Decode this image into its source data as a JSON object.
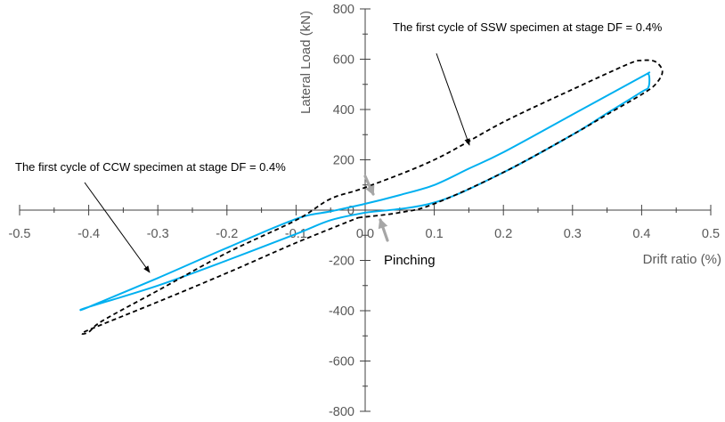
{
  "chart_data": {
    "type": "line",
    "title": "",
    "xlabel": "Drift ratio (%)",
    "ylabel": "Lateral Load (kN)",
    "xlim": [
      -0.5,
      0.5
    ],
    "ylim": [
      -800,
      800
    ],
    "x_ticks": [
      -0.5,
      -0.4,
      -0.3,
      -0.2,
      -0.1,
      0.0,
      0.1,
      0.2,
      0.3,
      0.4,
      0.5
    ],
    "x_tick_labels": [
      "-0.5",
      "-0.4",
      "-0.3",
      "-0.2",
      "-0.1",
      "0.0",
      "0.1",
      "0.2",
      "0.3",
      "0.4",
      "0.5"
    ],
    "y_ticks": [
      -800,
      -600,
      -400,
      -200,
      0,
      200,
      400,
      600,
      800
    ],
    "y_tick_labels": [
      "-800",
      "-600",
      "-400",
      "-200",
      "0",
      "200",
      "400",
      "600",
      "800"
    ],
    "grid": false,
    "series": [
      {
        "color": "#00b0f0",
        "style": "solid",
        "points": [
          [
            0.0,
            -10
          ],
          [
            0.1,
            30
          ],
          [
            0.2,
            150
          ],
          [
            0.3,
            300
          ],
          [
            0.35,
            385
          ],
          [
            0.4,
            470
          ],
          [
            0.41,
            490
          ],
          [
            0.41,
            540
          ],
          [
            0.4,
            530
          ],
          [
            0.3,
            380
          ],
          [
            0.2,
            230
          ],
          [
            0.15,
            165
          ],
          [
            0.1,
            100
          ],
          [
            0.05,
            60
          ],
          [
            0.0,
            25
          ],
          [
            -0.05,
            -5
          ],
          [
            -0.1,
            -35
          ],
          [
            -0.2,
            -150
          ],
          [
            -0.3,
            -270
          ],
          [
            -0.4,
            -385
          ],
          [
            -0.41,
            -395
          ],
          [
            -0.4,
            -385
          ],
          [
            -0.3,
            -300
          ],
          [
            -0.2,
            -200
          ],
          [
            -0.1,
            -95
          ],
          [
            -0.05,
            -40
          ],
          [
            0.0,
            -10
          ]
        ]
      },
      {
        "color": "#000000",
        "style": "dashed",
        "points": [
          [
            -0.01,
            -30
          ],
          [
            0.05,
            -10
          ],
          [
            0.1,
            25
          ],
          [
            0.2,
            150
          ],
          [
            0.3,
            300
          ],
          [
            0.35,
            380
          ],
          [
            0.4,
            460
          ],
          [
            0.42,
            500
          ],
          [
            0.43,
            550
          ],
          [
            0.42,
            590
          ],
          [
            0.4,
            595
          ],
          [
            0.38,
            580
          ],
          [
            0.3,
            480
          ],
          [
            0.2,
            350
          ],
          [
            0.1,
            200
          ],
          [
            0.0,
            90
          ],
          [
            -0.05,
            45
          ],
          [
            -0.1,
            -40
          ],
          [
            -0.2,
            -170
          ],
          [
            -0.3,
            -320
          ],
          [
            -0.38,
            -440
          ],
          [
            -0.4,
            -485
          ],
          [
            -0.41,
            -490
          ],
          [
            -0.39,
            -465
          ],
          [
            -0.3,
            -365
          ],
          [
            -0.2,
            -250
          ],
          [
            -0.1,
            -130
          ],
          [
            -0.01,
            -30
          ]
        ]
      }
    ],
    "annotations": [
      {
        "id": "ssw",
        "text": "The first cycle of SSW specimen at stage DF = 0.4%"
      },
      {
        "id": "ccw",
        "text": "The first cycle of CCW specimen at stage DF = 0.4%"
      },
      {
        "id": "pinching",
        "text": "Pinching"
      }
    ]
  }
}
